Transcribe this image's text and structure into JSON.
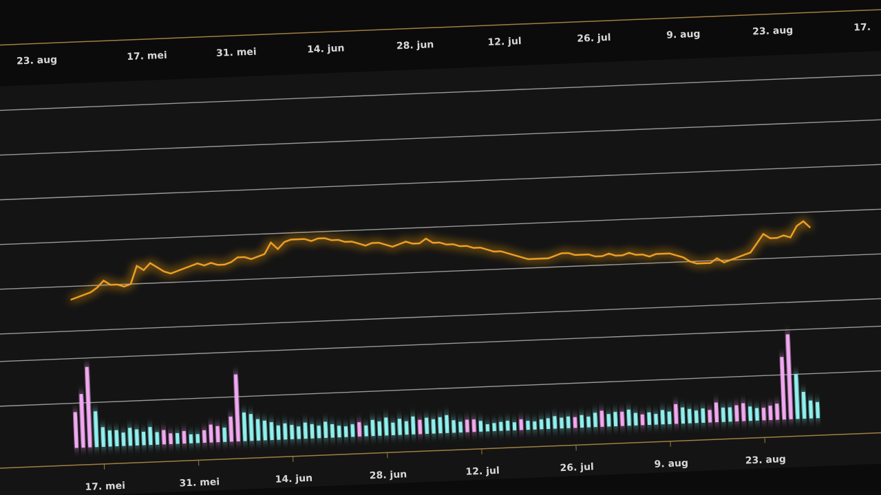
{
  "chart_data": [
    {
      "type": "line",
      "color": "#f0a020",
      "categories": [
        null,
        null,
        null,
        null,
        "17. mei",
        null,
        null,
        null,
        null,
        null,
        null,
        null,
        null,
        null,
        null,
        null,
        null,
        null,
        "31. mei",
        null,
        null,
        null,
        null,
        null,
        null,
        null,
        null,
        null,
        null,
        null,
        null,
        null,
        "14. jun",
        null,
        null,
        null,
        null,
        null,
        null,
        null,
        null,
        null,
        null,
        null,
        null,
        null,
        "28. jun",
        null,
        null,
        null,
        null,
        null,
        null,
        null,
        null,
        null,
        null,
        null,
        null,
        null,
        "12. jul",
        null,
        null,
        null,
        null,
        null,
        null,
        null,
        null,
        null,
        null,
        null,
        null,
        null,
        "26. jul",
        null,
        null,
        null,
        null,
        null,
        null,
        null,
        null,
        null,
        null,
        null,
        null,
        null,
        "9. aug",
        null,
        null,
        null,
        null,
        null,
        null,
        null,
        null,
        null,
        null,
        null,
        null,
        null,
        "23. aug",
        null,
        null,
        null,
        null,
        null,
        null,
        null,
        null
      ],
      "values": [
        14,
        15,
        16,
        17,
        19,
        22,
        20,
        20,
        19,
        20,
        28,
        26,
        29,
        27,
        25,
        24,
        25,
        26,
        27,
        28,
        27,
        28,
        27,
        27,
        28,
        30,
        30,
        29,
        30,
        31,
        36,
        33,
        36,
        37,
        37,
        37,
        36,
        37,
        37,
        36,
        36,
        35,
        35,
        34,
        33,
        34,
        34,
        33,
        32,
        33,
        34,
        33,
        33,
        35,
        33,
        33,
        32,
        32,
        31,
        31,
        30,
        30,
        29,
        28,
        28,
        27,
        26,
        25,
        24,
        24,
        24,
        24,
        25,
        26,
        26,
        25,
        25,
        25,
        24,
        24,
        25,
        24,
        24,
        25,
        24,
        24,
        23,
        24,
        24,
        24,
        23,
        22,
        20,
        19,
        19,
        19,
        21,
        19,
        20,
        21,
        22,
        23,
        27,
        31,
        29,
        29,
        30,
        29,
        34,
        36,
        33
      ],
      "ylim": [
        0,
        100
      ],
      "yticks": [
        0,
        20,
        40,
        60,
        80,
        100
      ],
      "grid": true
    },
    {
      "type": "bar",
      "categories": [
        null,
        null,
        null,
        null,
        "17. mei",
        null,
        null,
        null,
        null,
        null,
        null,
        null,
        null,
        null,
        null,
        null,
        null,
        null,
        "31. mei",
        null,
        null,
        null,
        null,
        null,
        null,
        null,
        null,
        null,
        null,
        null,
        null,
        null,
        "14. jun",
        null,
        null,
        null,
        null,
        null,
        null,
        null,
        null,
        null,
        null,
        null,
        null,
        null,
        "28. jun",
        null,
        null,
        null,
        null,
        null,
        null,
        null,
        null,
        null,
        null,
        null,
        null,
        null,
        "12. jul",
        null,
        null,
        null,
        null,
        null,
        null,
        null,
        null,
        null,
        null,
        null,
        null,
        null,
        "26. jul",
        null,
        null,
        null,
        null,
        null,
        null,
        null,
        null,
        null,
        null,
        null,
        null,
        null,
        "9. aug",
        null,
        null,
        null,
        null,
        null,
        null,
        null,
        null,
        null,
        null,
        null,
        null,
        null,
        "23. aug",
        null,
        null,
        null,
        null,
        null,
        null,
        null,
        null
      ],
      "series": [
        {
          "color": "#8ff0ee",
          "values": [
            null,
            null,
            null,
            40,
            22,
            18,
            18,
            15,
            20,
            18,
            15,
            20,
            14,
            null,
            null,
            12,
            null,
            10,
            10,
            null,
            null,
            null,
            16,
            null,
            null,
            32,
            30,
            24,
            22,
            20,
            16,
            18,
            16,
            14,
            18,
            16,
            14,
            18,
            15,
            13,
            12,
            14,
            null,
            12,
            18,
            16,
            20,
            14,
            18,
            15,
            20,
            null,
            18,
            16,
            18,
            20,
            14,
            12,
            null,
            null,
            12,
            8,
            9,
            10,
            11,
            9,
            null,
            10,
            9,
            11,
            12,
            14,
            12,
            13,
            null,
            14,
            12,
            16,
            null,
            14,
            16,
            null,
            18,
            14,
            null,
            14,
            12,
            16,
            14,
            null,
            18,
            16,
            14,
            16,
            null,
            null,
            16,
            16,
            null,
            null,
            16,
            14,
            null,
            null,
            null,
            null,
            null,
            50,
            30,
            20,
            18
          ]
        },
        {
          "color": "#f0a8f0",
          "values": [
            40,
            60,
            90,
            null,
            null,
            null,
            null,
            null,
            null,
            null,
            null,
            null,
            null,
            16,
            12,
            null,
            14,
            null,
            null,
            14,
            20,
            18,
            null,
            28,
            75,
            null,
            null,
            null,
            null,
            null,
            null,
            null,
            null,
            null,
            null,
            null,
            null,
            null,
            null,
            null,
            null,
            null,
            16,
            null,
            null,
            null,
            null,
            null,
            null,
            null,
            null,
            16,
            null,
            null,
            null,
            null,
            null,
            null,
            14,
            14,
            null,
            null,
            null,
            null,
            null,
            null,
            12,
            null,
            null,
            null,
            null,
            null,
            null,
            null,
            12,
            null,
            null,
            null,
            18,
            null,
            null,
            16,
            null,
            null,
            12,
            null,
            null,
            null,
            null,
            22,
            null,
            null,
            null,
            null,
            14,
            22,
            null,
            null,
            18,
            20,
            null,
            null,
            14,
            16,
            18,
            70,
            95,
            null,
            null,
            null,
            null
          ]
        }
      ],
      "ylim": [
        0,
        100
      ],
      "yticks": [
        50,
        100
      ],
      "grid": true
    },
    {
      "type": "axis",
      "categories": [
        "23. aug",
        "17. mei",
        "31. mei",
        "14. jun",
        "28. jun",
        "12. jul",
        "26. jul",
        "9. aug",
        "23. aug",
        "17."
      ]
    }
  ]
}
